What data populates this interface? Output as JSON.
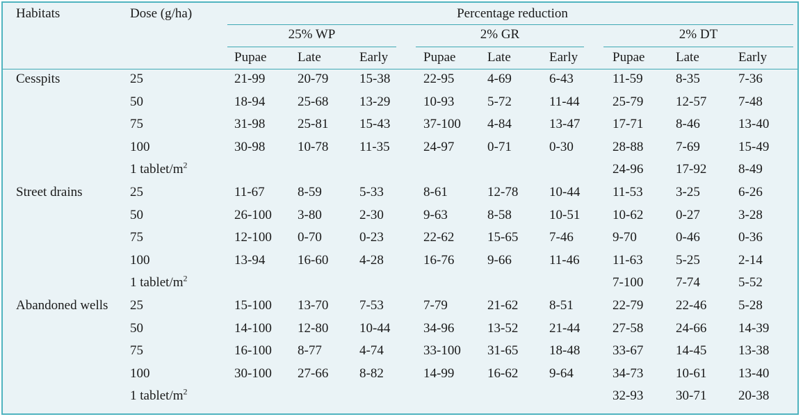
{
  "header": {
    "habitats": "Habitats",
    "dose": "Dose (g/ha)",
    "percentage_reduction": "Percentage reduction",
    "groups": [
      "25% WP",
      "2% GR",
      "2% DT"
    ],
    "stages": [
      "Pupae",
      "Late",
      "Early"
    ]
  },
  "rows": [
    {
      "habitat": "Cesspits",
      "dose": "25",
      "values": [
        "21-99",
        "20-79",
        "15-38",
        "22-95",
        "4-69",
        "6-43",
        "11-59",
        "8-35",
        "7-36"
      ]
    },
    {
      "habitat": "",
      "dose": "50",
      "values": [
        "18-94",
        "25-68",
        "13-29",
        "10-93",
        "5-72",
        "11-44",
        "25-79",
        "12-57",
        "7-48"
      ]
    },
    {
      "habitat": "",
      "dose": "75",
      "values": [
        "31-98",
        "25-81",
        "15-43",
        "37-100",
        "4-84",
        "13-47",
        "17-71",
        "8-46",
        "13-40"
      ]
    },
    {
      "habitat": "",
      "dose": "100",
      "values": [
        "30-98",
        "10-78",
        "11-35",
        "24-97",
        "0-71",
        "0-30",
        "28-88",
        "7-69",
        "15-49"
      ]
    },
    {
      "habitat": "",
      "dose": "1 tablet/m",
      "dose_sup": "2",
      "values": [
        "",
        "",
        "",
        "",
        "",
        "",
        "24-96",
        "17-92",
        "8-49"
      ]
    },
    {
      "habitat": "Street drains",
      "dose": "25",
      "values": [
        "11-67",
        "8-59",
        "5-33",
        "8-61",
        "12-78",
        "10-44",
        "11-53",
        "3-25",
        "6-26"
      ]
    },
    {
      "habitat": "",
      "dose": "50",
      "values": [
        "26-100",
        "3-80",
        "2-30",
        "9-63",
        "8-58",
        "10-51",
        "10-62",
        "0-27",
        "3-28"
      ]
    },
    {
      "habitat": "",
      "dose": "75",
      "values": [
        "12-100",
        "0-70",
        "0-23",
        "22-62",
        "15-65",
        "7-46",
        "9-70",
        "0-46",
        "0-36"
      ]
    },
    {
      "habitat": "",
      "dose": "100",
      "values": [
        "13-94",
        "16-60",
        "4-28",
        "16-76",
        "9-66",
        "11-46",
        "11-63",
        "5-25",
        "2-14"
      ]
    },
    {
      "habitat": "",
      "dose": "1 tablet/m",
      "dose_sup": "2",
      "values": [
        "",
        "",
        "",
        "",
        "",
        "",
        "7-100",
        "7-74",
        "5-52"
      ]
    },
    {
      "habitat": "Abandoned wells",
      "dose": "25",
      "values": [
        "15-100",
        "13-70",
        "7-53",
        "7-79",
        "21-62",
        "8-51",
        "22-79",
        "22-46",
        "5-28"
      ]
    },
    {
      "habitat": "",
      "dose": "50",
      "values": [
        "14-100",
        "12-80",
        "10-44",
        "34-96",
        "13-52",
        "21-44",
        "27-58",
        "24-66",
        "14-39"
      ]
    },
    {
      "habitat": "",
      "dose": "75",
      "values": [
        "16-100",
        "8-77",
        "4-74",
        "33-100",
        "31-65",
        "18-48",
        "33-67",
        "14-45",
        "13-38"
      ]
    },
    {
      "habitat": "",
      "dose": "100",
      "values": [
        "30-100",
        "27-66",
        "8-82",
        "14-99",
        "16-62",
        "9-64",
        "34-73",
        "10-61",
        "13-40"
      ]
    },
    {
      "habitat": "",
      "dose": "1 tablet/m",
      "dose_sup": "2",
      "values": [
        "",
        "",
        "",
        "",
        "",
        "",
        "32-93",
        "30-71",
        "20-38"
      ]
    }
  ]
}
